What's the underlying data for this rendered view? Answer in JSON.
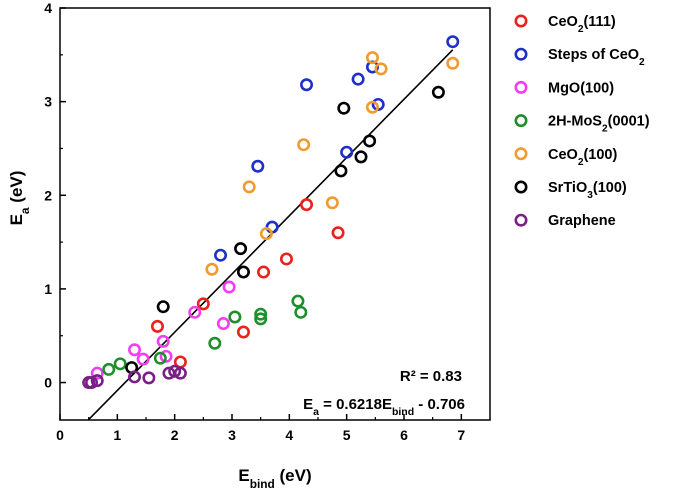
{
  "chart_data": {
    "type": "scatter",
    "xlabel": {
      "main": "E",
      "sub": "bind",
      "unit": " (eV)"
    },
    "ylabel": {
      "main": "E",
      "sub": "a",
      "unit": " (eV)"
    },
    "xlim": [
      0,
      7.5
    ],
    "ylim": [
      -0.4,
      4
    ],
    "xticks": [
      0,
      1,
      2,
      3,
      4,
      5,
      6,
      7
    ],
    "yticks": [
      0,
      1,
      2,
      3,
      4
    ],
    "grid": false,
    "legend_position": "right-outside",
    "series": [
      {
        "name": "CeO2(111)",
        "name_parts": [
          {
            "t": "CeO"
          },
          {
            "t": "2",
            "sub": true
          },
          {
            "t": "(111)"
          }
        ],
        "color": "#e8231c",
        "points": [
          [
            1.7,
            0.6
          ],
          [
            2.1,
            0.22
          ],
          [
            2.5,
            0.84
          ],
          [
            3.2,
            0.54
          ],
          [
            3.55,
            1.18
          ],
          [
            3.95,
            1.32
          ],
          [
            4.3,
            1.9
          ],
          [
            4.85,
            1.6
          ]
        ]
      },
      {
        "name": "Steps of CeO2",
        "name_parts": [
          {
            "t": "Steps of CeO"
          },
          {
            "t": "2",
            "sub": true
          }
        ],
        "color": "#1f2fc8",
        "points": [
          [
            2.8,
            1.36
          ],
          [
            3.45,
            2.31
          ],
          [
            3.7,
            1.66
          ],
          [
            4.3,
            3.18
          ],
          [
            5.0,
            2.46
          ],
          [
            5.2,
            3.24
          ],
          [
            5.45,
            3.37
          ],
          [
            5.55,
            2.97
          ],
          [
            6.85,
            3.64
          ]
        ]
      },
      {
        "name": "MgO(100)",
        "name_parts": [
          {
            "t": "MgO(100)"
          }
        ],
        "color": "#f23ef0",
        "points": [
          [
            0.65,
            0.1
          ],
          [
            1.3,
            0.35
          ],
          [
            1.45,
            0.25
          ],
          [
            1.8,
            0.44
          ],
          [
            1.85,
            0.28
          ],
          [
            2.35,
            0.75
          ],
          [
            2.85,
            0.63
          ],
          [
            2.95,
            1.02
          ]
        ]
      },
      {
        "name": "2H-MoS2(0001)",
        "name_parts": [
          {
            "t": "2H-MoS"
          },
          {
            "t": "2",
            "sub": true
          },
          {
            "t": "(0001)"
          }
        ],
        "color": "#1f8f2c",
        "points": [
          [
            0.85,
            0.14
          ],
          [
            1.05,
            0.2
          ],
          [
            1.75,
            0.26
          ],
          [
            2.7,
            0.42
          ],
          [
            3.05,
            0.7
          ],
          [
            3.5,
            0.68
          ],
          [
            3.5,
            0.73
          ],
          [
            4.15,
            0.87
          ],
          [
            4.2,
            0.75
          ]
        ]
      },
      {
        "name": "CeO2(100)",
        "name_parts": [
          {
            "t": "CeO"
          },
          {
            "t": "2",
            "sub": true
          },
          {
            "t": "(100)"
          }
        ],
        "color": "#f19a2d",
        "points": [
          [
            2.65,
            1.21
          ],
          [
            3.3,
            2.09
          ],
          [
            3.6,
            1.59
          ],
          [
            4.25,
            2.54
          ],
          [
            4.75,
            1.92
          ],
          [
            5.45,
            3.47
          ],
          [
            5.45,
            2.94
          ],
          [
            5.6,
            3.35
          ],
          [
            6.85,
            3.41
          ]
        ]
      },
      {
        "name": "SrTiO3(100)",
        "name_parts": [
          {
            "t": "SrTiO"
          },
          {
            "t": "3",
            "sub": true
          },
          {
            "t": "(100)"
          }
        ],
        "color": "#000000",
        "points": [
          [
            1.25,
            0.16
          ],
          [
            1.8,
            0.81
          ],
          [
            3.15,
            1.43
          ],
          [
            3.2,
            1.18
          ],
          [
            4.9,
            2.26
          ],
          [
            4.95,
            2.93
          ],
          [
            5.25,
            2.41
          ],
          [
            5.4,
            2.58
          ],
          [
            6.6,
            3.1
          ]
        ]
      },
      {
        "name": "Graphene",
        "name_parts": [
          {
            "t": "Graphene"
          }
        ],
        "color": "#7a1f86",
        "points": [
          [
            0.5,
            0.0
          ],
          [
            0.55,
            0.0
          ],
          [
            0.65,
            0.02
          ],
          [
            1.3,
            0.06
          ],
          [
            1.55,
            0.05
          ],
          [
            1.9,
            0.1
          ],
          [
            2.0,
            0.12
          ],
          [
            2.1,
            0.1
          ]
        ]
      }
    ],
    "fit_line": {
      "slope": 0.6218,
      "intercept": -0.706,
      "x_range": [
        0.5,
        6.85
      ],
      "color": "#000000"
    },
    "annotations": {
      "r2": "R² = 0.83",
      "equation_parts": [
        {
          "t": "E"
        },
        {
          "t": "a",
          "sub": true
        },
        {
          "t": " = 0.6218E"
        },
        {
          "t": "bind",
          "sub": true
        },
        {
          "t": " - 0.706"
        }
      ]
    }
  }
}
